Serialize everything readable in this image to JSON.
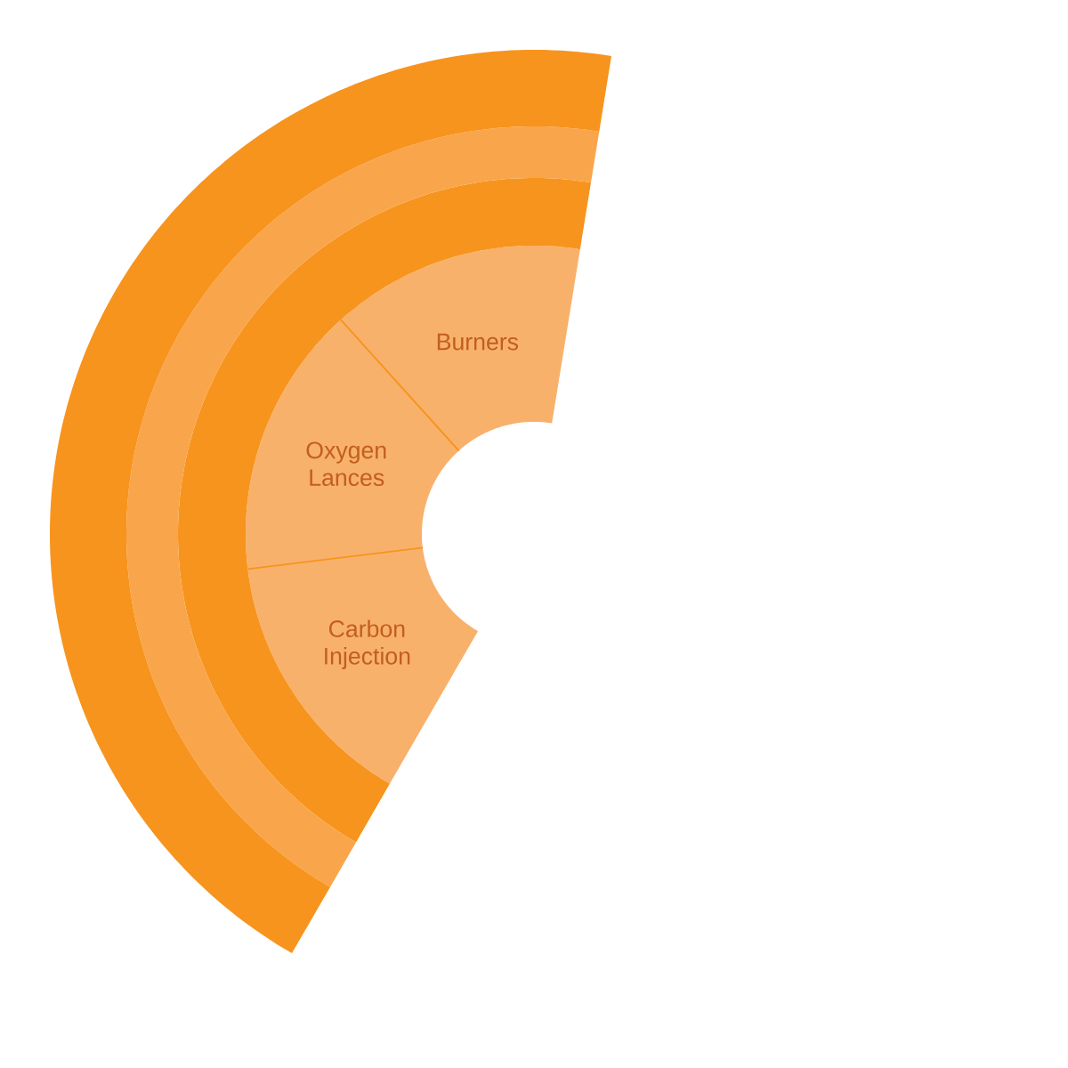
{
  "chart_data": [
    {
      "type": "donut",
      "categories": [
        "Burners",
        "Oxygen Lances",
        "Carbon Injection"
      ],
      "values": [
        32.2,
        34.5,
        33.3
      ],
      "color": "#f8b16b"
    },
    {
      "type": "pie",
      "categories": [
        null
      ],
      "values": [
        100
      ],
      "color": "#f7941d"
    },
    {
      "type": "pie",
      "categories": [
        null
      ],
      "values": [
        100
      ],
      "color": "#f9a54b"
    },
    {
      "type": "pie",
      "categories": [
        null
      ],
      "values": [
        100
      ],
      "color": "#f7941d"
    }
  ]
}
